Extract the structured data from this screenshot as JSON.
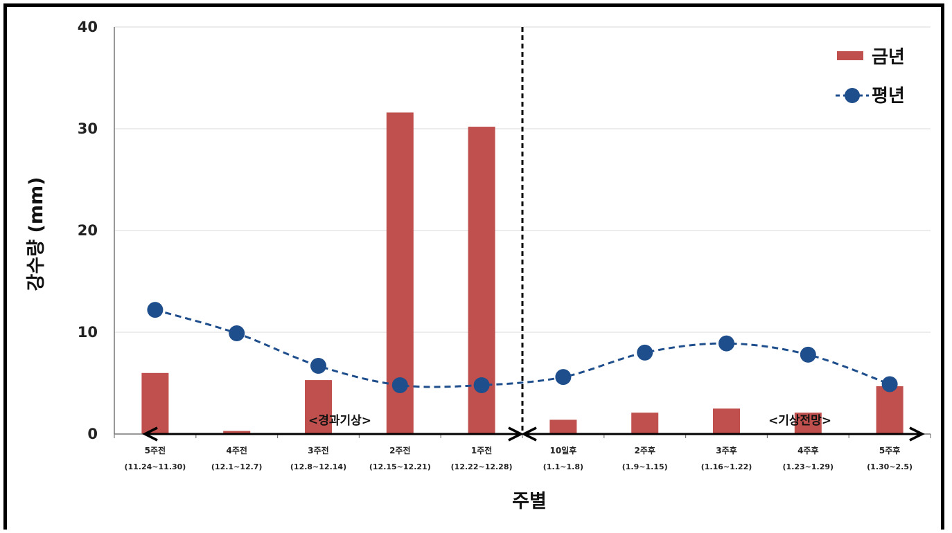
{
  "chart_data": {
    "type": "bar",
    "title": "",
    "xlabel": "주별",
    "ylabel": "강수량 (mm)",
    "ylim": [
      0,
      40
    ],
    "yticks": [
      0,
      10,
      20,
      30,
      40
    ],
    "grid": true,
    "legend_position": "top-right",
    "categories": [
      {
        "label": "5주전",
        "range": "(11.24~11.30)"
      },
      {
        "label": "4주전",
        "range": "(12.1~12.7)"
      },
      {
        "label": "3주전",
        "range": "(12.8~12.14)"
      },
      {
        "label": "2주전",
        "range": "(12.15~12.21)"
      },
      {
        "label": "1주전",
        "range": "(12.22~12.28)"
      },
      {
        "label": "10일후",
        "range": "(1.1~1.8)"
      },
      {
        "label": "2주후",
        "range": "(1.9~1.15)"
      },
      {
        "label": "3주후",
        "range": "(1.16~1.22)"
      },
      {
        "label": "4주후",
        "range": "(1.23~1.29)"
      },
      {
        "label": "5주후",
        "range": "(1.30~2.5)"
      }
    ],
    "series": [
      {
        "name": "금년",
        "kind": "bar",
        "color": "#c0504d",
        "values": [
          6.0,
          0.3,
          5.3,
          31.6,
          30.2,
          1.4,
          2.1,
          2.5,
          2.1,
          4.7
        ]
      },
      {
        "name": "평년",
        "kind": "line-dashed-markers",
        "color": "#1f4e8c",
        "values": [
          12.2,
          9.9,
          6.7,
          4.8,
          4.8,
          5.6,
          8.0,
          8.9,
          7.8,
          4.9
        ]
      }
    ],
    "annotations": {
      "past_label": "<경과기상>",
      "future_label": "<기상전망>"
    }
  }
}
